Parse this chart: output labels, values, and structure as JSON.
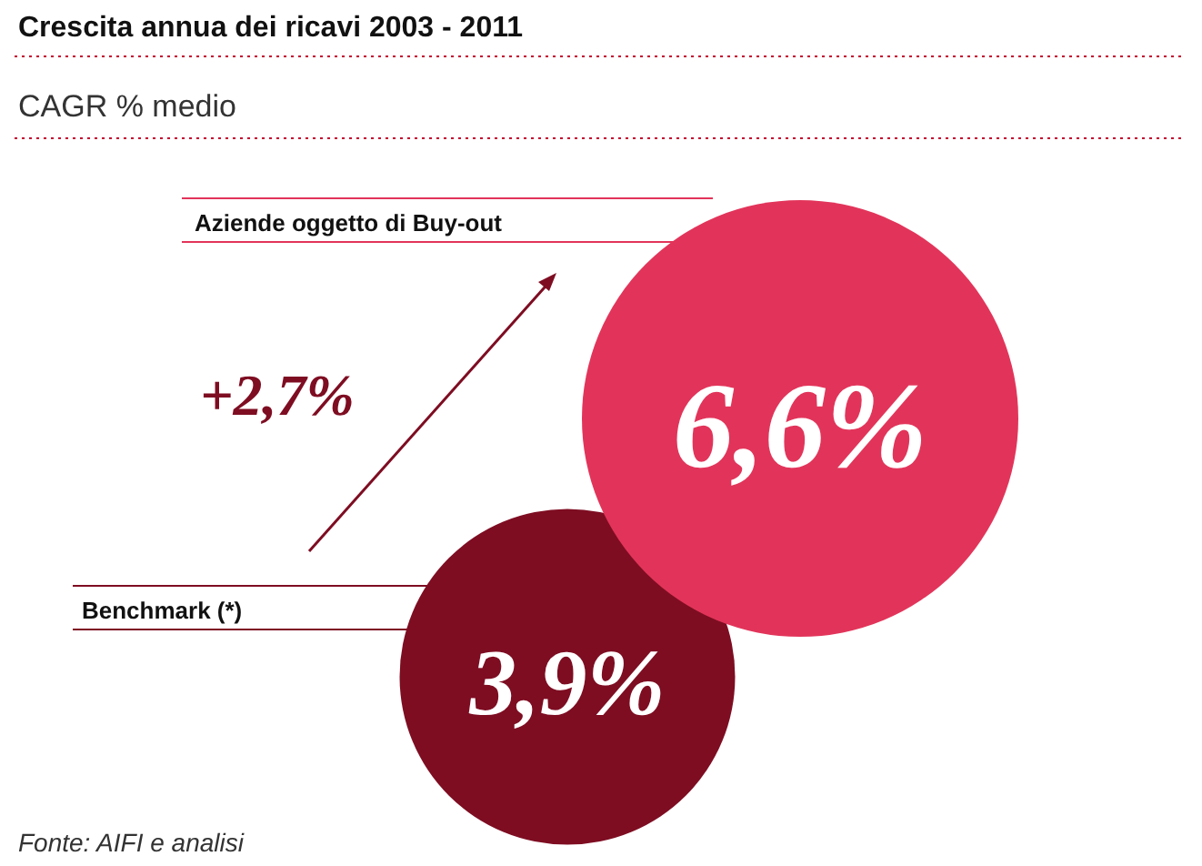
{
  "chart_data": {
    "type": "other",
    "title": "Crescita annua dei ricavi 2003 - 2011",
    "subtitle": "CAGR % medio",
    "categories": [
      "Aziende oggetto di Buy-out",
      "Benchmark (*)"
    ],
    "values": [
      6.6,
      3.9
    ],
    "value_labels": [
      "6,6%",
      "3,9%"
    ],
    "colors": [
      "#e2345a",
      "#7e0d22"
    ],
    "annotations": [
      "+2,7%",
      "Fonte: AIFI e analisi"
    ]
  }
}
